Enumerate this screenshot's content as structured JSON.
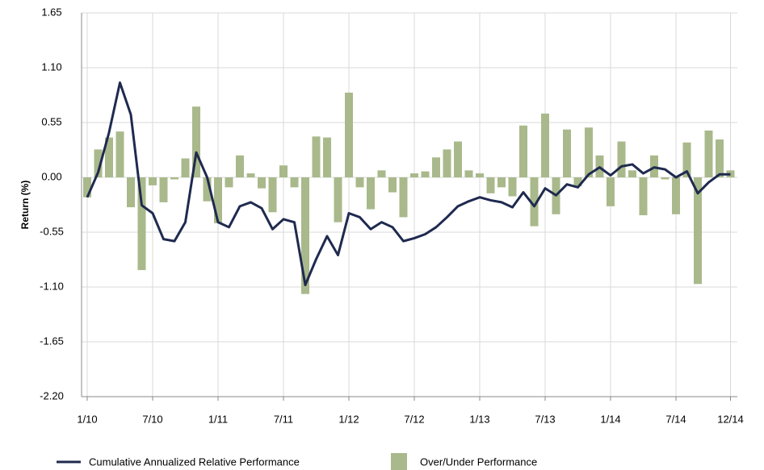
{
  "chart_data": {
    "type": "bar",
    "y_label": "Return (%)",
    "categories": [
      "1/10",
      null,
      null,
      null,
      null,
      null,
      "7/10",
      null,
      null,
      null,
      null,
      null,
      "1/11",
      null,
      null,
      null,
      null,
      null,
      "7/11",
      null,
      null,
      null,
      null,
      null,
      "1/12",
      null,
      null,
      null,
      null,
      null,
      "7/12",
      null,
      null,
      null,
      null,
      null,
      "1/13",
      null,
      null,
      null,
      null,
      null,
      "7/13",
      null,
      null,
      null,
      null,
      null,
      "1/14",
      null,
      null,
      null,
      null,
      null,
      "7/14",
      null,
      null,
      null,
      null,
      "12/14"
    ],
    "series": [
      {
        "name": "Cumulative Annualized Relative Performance",
        "type": "line",
        "color": "#1f2a4f",
        "values": [
          -0.2,
          0.05,
          0.45,
          0.95,
          0.63,
          -0.28,
          -0.36,
          -0.62,
          -0.64,
          -0.45,
          0.25,
          0.0,
          -0.45,
          -0.5,
          -0.29,
          -0.25,
          -0.31,
          -0.52,
          -0.42,
          -0.45,
          -1.08,
          -0.82,
          -0.59,
          -0.78,
          -0.36,
          -0.4,
          -0.52,
          -0.45,
          -0.5,
          -0.64,
          -0.61,
          -0.57,
          -0.5,
          -0.4,
          -0.29,
          -0.24,
          -0.2,
          -0.23,
          -0.25,
          -0.3,
          -0.15,
          -0.29,
          -0.11,
          -0.18,
          -0.07,
          -0.1,
          0.03,
          0.1,
          0.02,
          0.11,
          0.13,
          0.04,
          0.1,
          0.08,
          0.0,
          0.06,
          -0.16,
          -0.05,
          0.03,
          0.03
        ]
      },
      {
        "name": "Over/Under Performance",
        "type": "bar",
        "color": "#a9b98b",
        "values": [
          -0.2,
          0.28,
          0.4,
          0.46,
          -0.3,
          -0.93,
          -0.08,
          -0.25,
          -0.02,
          0.19,
          0.71,
          -0.24,
          -0.46,
          -0.1,
          0.22,
          0.04,
          -0.11,
          -0.35,
          0.12,
          -0.1,
          -1.17,
          0.41,
          0.4,
          -0.45,
          0.85,
          -0.1,
          -0.32,
          0.07,
          -0.15,
          -0.4,
          0.04,
          0.06,
          0.2,
          0.28,
          0.36,
          0.07,
          0.04,
          -0.16,
          -0.1,
          -0.19,
          0.52,
          -0.49,
          0.64,
          -0.37,
          0.48,
          -0.09,
          0.5,
          0.22,
          -0.29,
          0.36,
          0.07,
          -0.38,
          0.22,
          -0.02,
          -0.37,
          0.35,
          -1.07,
          0.47,
          0.38,
          0.07
        ]
      }
    ],
    "ylim": [
      -2.2,
      1.65
    ],
    "yticks": [
      {
        "value": -2.2,
        "label": "-2.20"
      },
      -1.65,
      {
        "value": -1.1,
        "label": "-1.10"
      },
      -0.55,
      {
        "value": 0,
        "label": "0.00"
      },
      0.55,
      {
        "value": 1.1,
        "label": "1.10"
      },
      1.65
    ],
    "grid": true
  }
}
